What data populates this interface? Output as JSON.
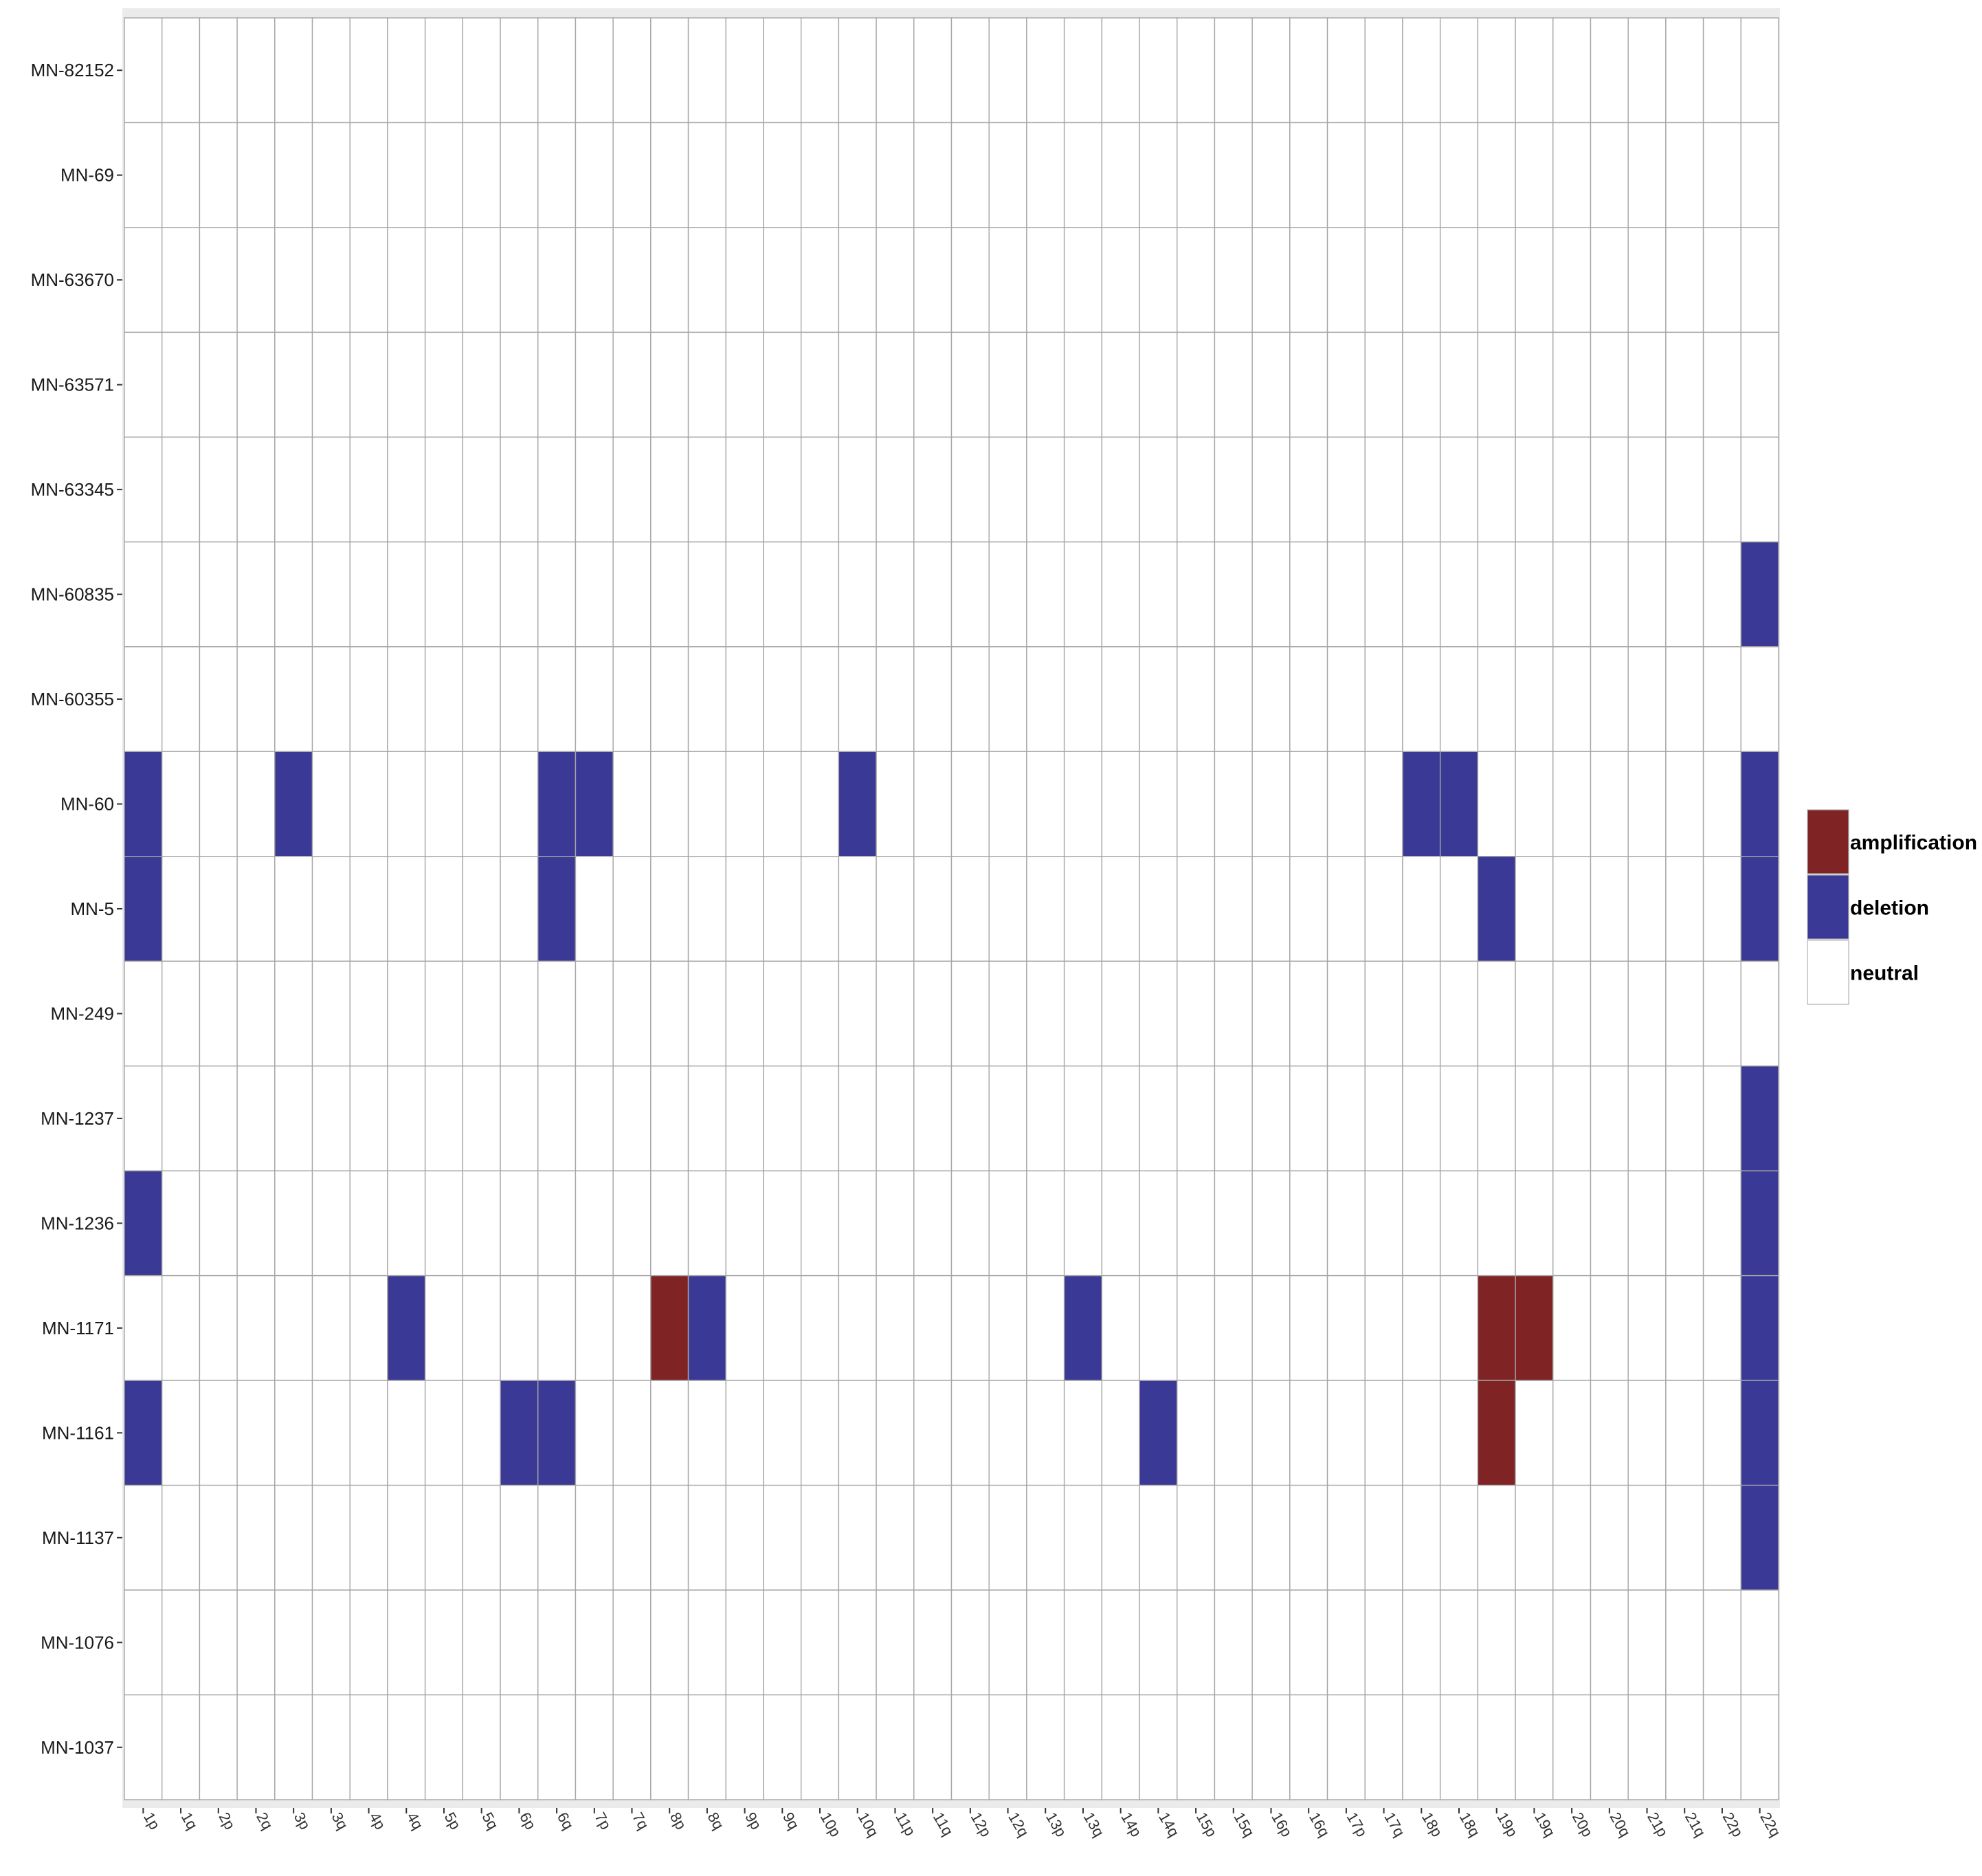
{
  "chart_data": {
    "type": "heatmap",
    "title": "",
    "xlabel": "",
    "ylabel": "",
    "x": [
      "1p",
      "1q",
      "2p",
      "2q",
      "3p",
      "3q",
      "4p",
      "4q",
      "5p",
      "5q",
      "6p",
      "6q",
      "7p",
      "7q",
      "8p",
      "8q",
      "9p",
      "9q",
      "10p",
      "10q",
      "11p",
      "11q",
      "12p",
      "12q",
      "13p",
      "13q",
      "14p",
      "14q",
      "15p",
      "15q",
      "16p",
      "16q",
      "17p",
      "17q",
      "18p",
      "18q",
      "19p",
      "19q",
      "20p",
      "20q",
      "21p",
      "21q",
      "22p",
      "22q"
    ],
    "y": [
      "MN-82152",
      "MN-69",
      "MN-63670",
      "MN-63571",
      "MN-63345",
      "MN-60835",
      "MN-60355",
      "MN-60",
      "MN-5",
      "MN-249",
      "MN-1237",
      "MN-1236",
      "MN-1171",
      "MN-1161",
      "MN-1137",
      "MN-1076",
      "MN-1037"
    ],
    "default_state": "neutral",
    "cells": [
      {
        "sample": "MN-60835",
        "arm": "22q",
        "state": "deletion"
      },
      {
        "sample": "MN-60",
        "arm": "1p",
        "state": "deletion"
      },
      {
        "sample": "MN-60",
        "arm": "3p",
        "state": "deletion"
      },
      {
        "sample": "MN-60",
        "arm": "6q",
        "state": "deletion"
      },
      {
        "sample": "MN-60",
        "arm": "7p",
        "state": "deletion"
      },
      {
        "sample": "MN-60",
        "arm": "10q",
        "state": "deletion"
      },
      {
        "sample": "MN-60",
        "arm": "18p",
        "state": "deletion"
      },
      {
        "sample": "MN-60",
        "arm": "18q",
        "state": "deletion"
      },
      {
        "sample": "MN-60",
        "arm": "22q",
        "state": "deletion"
      },
      {
        "sample": "MN-5",
        "arm": "1p",
        "state": "deletion"
      },
      {
        "sample": "MN-5",
        "arm": "6q",
        "state": "deletion"
      },
      {
        "sample": "MN-5",
        "arm": "19p",
        "state": "deletion"
      },
      {
        "sample": "MN-5",
        "arm": "22q",
        "state": "deletion"
      },
      {
        "sample": "MN-1237",
        "arm": "22q",
        "state": "deletion"
      },
      {
        "sample": "MN-1236",
        "arm": "1p",
        "state": "deletion"
      },
      {
        "sample": "MN-1236",
        "arm": "22q",
        "state": "deletion"
      },
      {
        "sample": "MN-1171",
        "arm": "4q",
        "state": "deletion"
      },
      {
        "sample": "MN-1171",
        "arm": "8p",
        "state": "amplification"
      },
      {
        "sample": "MN-1171",
        "arm": "8q",
        "state": "deletion"
      },
      {
        "sample": "MN-1171",
        "arm": "13q",
        "state": "deletion"
      },
      {
        "sample": "MN-1171",
        "arm": "19p",
        "state": "amplification"
      },
      {
        "sample": "MN-1171",
        "arm": "19q",
        "state": "amplification"
      },
      {
        "sample": "MN-1171",
        "arm": "22q",
        "state": "deletion"
      },
      {
        "sample": "MN-1161",
        "arm": "1p",
        "state": "deletion"
      },
      {
        "sample": "MN-1161",
        "arm": "6p",
        "state": "deletion"
      },
      {
        "sample": "MN-1161",
        "arm": "6q",
        "state": "deletion"
      },
      {
        "sample": "MN-1161",
        "arm": "14q",
        "state": "deletion"
      },
      {
        "sample": "MN-1161",
        "arm": "19p",
        "state": "amplification"
      },
      {
        "sample": "MN-1161",
        "arm": "22q",
        "state": "deletion"
      },
      {
        "sample": "MN-1137",
        "arm": "22q",
        "state": "deletion"
      }
    ],
    "legend": {
      "position": "right",
      "entries": [
        {
          "label": "amplification",
          "color": "#7f2324"
        },
        {
          "label": "deletion",
          "color": "#3a3996"
        },
        {
          "label": "neutral",
          "color": "#ffffff"
        }
      ]
    },
    "grid": true,
    "colors": {
      "panel_background": "#ebebeb",
      "cell_border": "#a6a6a6"
    }
  }
}
